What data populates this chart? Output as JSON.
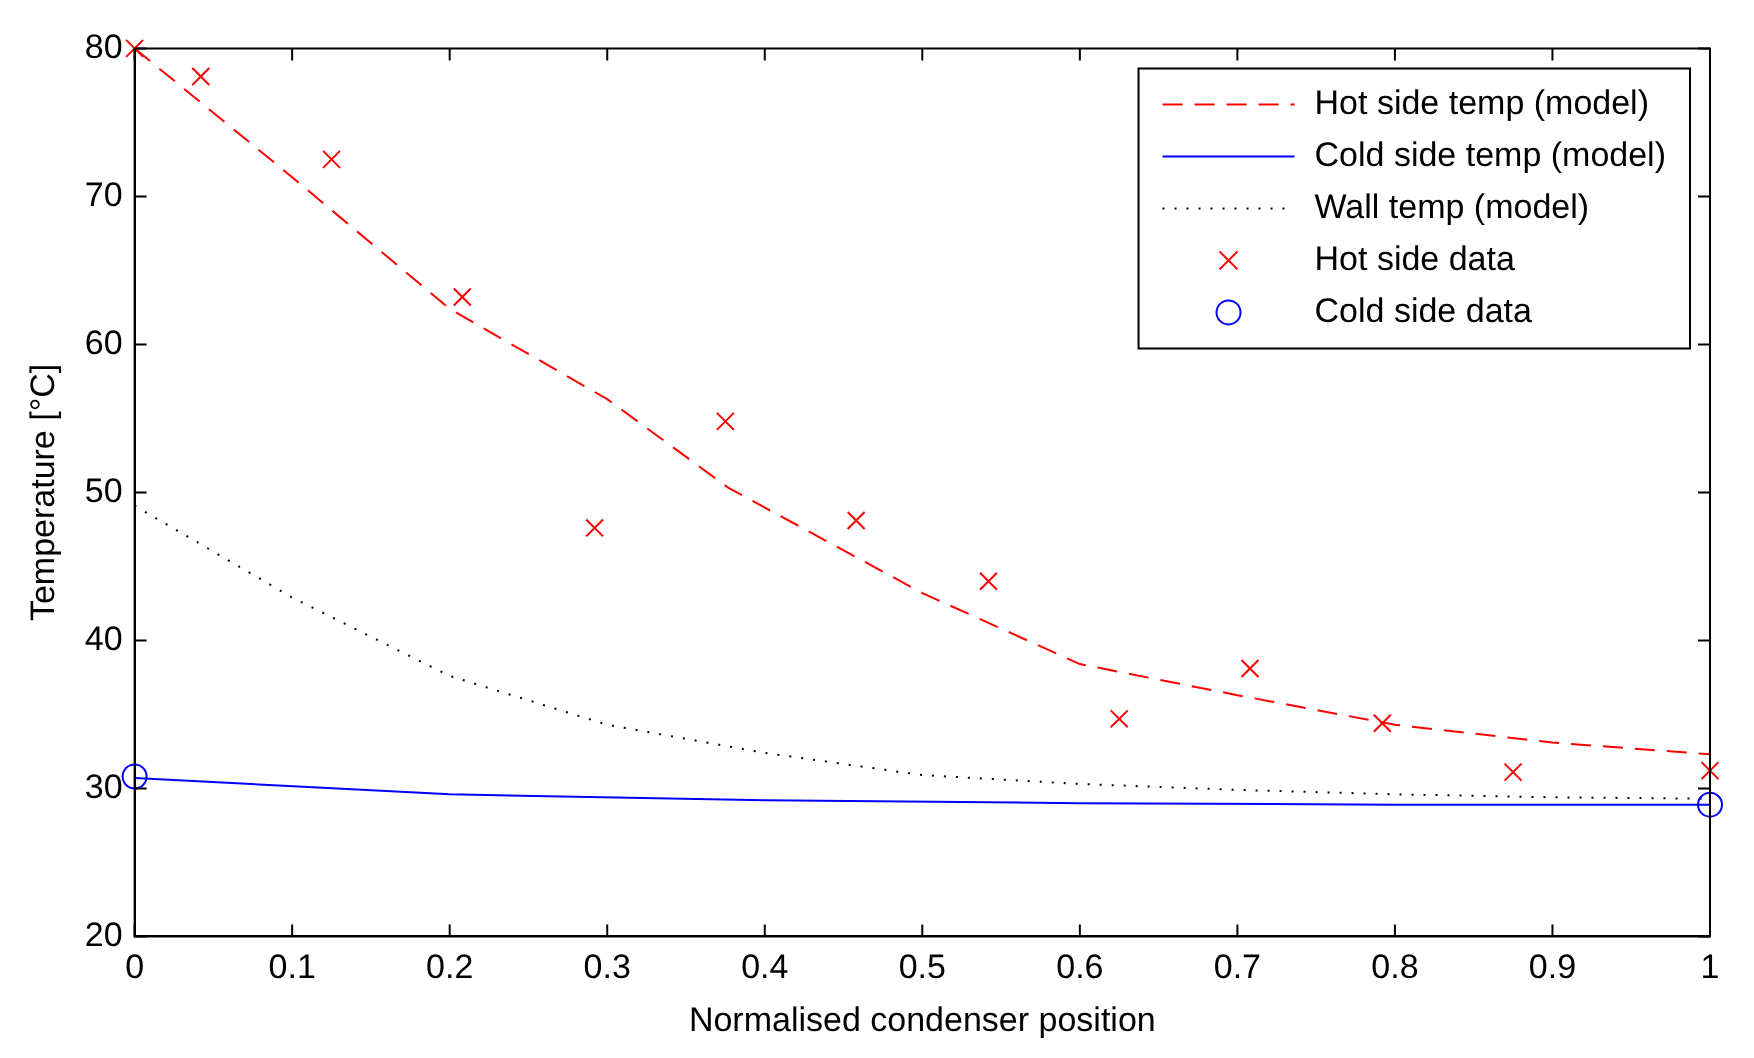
{
  "chart_data": {
    "type": "line",
    "xlabel": "Normalised condenser position",
    "ylabel": "Temperature [°C]",
    "xlim": [
      0,
      1
    ],
    "ylim": [
      20,
      80
    ],
    "xticks": [
      0,
      0.1,
      0.2,
      0.3,
      0.4,
      0.5,
      0.6,
      0.7,
      0.8,
      0.9,
      1
    ],
    "yticks": [
      20,
      30,
      40,
      50,
      60,
      70,
      80
    ],
    "grid": false,
    "legend": "top right",
    "series": [
      {
        "name": "Hot side temp (model)",
        "type": "line",
        "color": "#ff0000",
        "line_style": "dashed",
        "marker": "none",
        "x": [
          0,
          0.1,
          0.2,
          0.3,
          0.377,
          0.5,
          0.6,
          0.7,
          0.8,
          0.9,
          1
        ],
        "values": [
          80,
          71.3,
          62.4,
          56.3,
          50.3,
          43.2,
          38.4,
          36.3,
          34.3,
          33.1,
          32.3
        ]
      },
      {
        "name": "Cold side temp (model)",
        "type": "line",
        "color": "#0000ff",
        "line_style": "solid",
        "marker": "none",
        "x": [
          0,
          0.2,
          0.4,
          0.6,
          0.8,
          1
        ],
        "values": [
          30.7,
          29.6,
          29.2,
          29.0,
          28.9,
          28.9
        ]
      },
      {
        "name": "Wall temp (model)",
        "type": "line",
        "color": "#000000",
        "line_style": "dotted",
        "marker": "none",
        "x": [
          0,
          0.1,
          0.2,
          0.3,
          0.4,
          0.5,
          0.6,
          0.7,
          0.8,
          0.9,
          1
        ],
        "values": [
          49.1,
          42.9,
          37.6,
          34.3,
          32.4,
          30.9,
          30.3,
          29.9,
          29.6,
          29.4,
          29.3
        ]
      },
      {
        "name": "Hot side data",
        "type": "scatter",
        "color": "#ff0000",
        "marker": "cross",
        "x": [
          0,
          0.042,
          0.125,
          0.208,
          0.292,
          0.375,
          0.458,
          0.542,
          0.625,
          0.708,
          0.792,
          0.875,
          1
        ],
        "values": [
          80,
          78.1,
          72.5,
          63.2,
          47.6,
          54.8,
          48.1,
          44.0,
          34.7,
          38.1,
          34.4,
          31.1,
          31.2
        ]
      },
      {
        "name": "Cold side data",
        "type": "scatter",
        "color": "#0000ff",
        "marker": "circle",
        "x": [
          0,
          1
        ],
        "values": [
          30.8,
          28.9
        ]
      }
    ]
  }
}
